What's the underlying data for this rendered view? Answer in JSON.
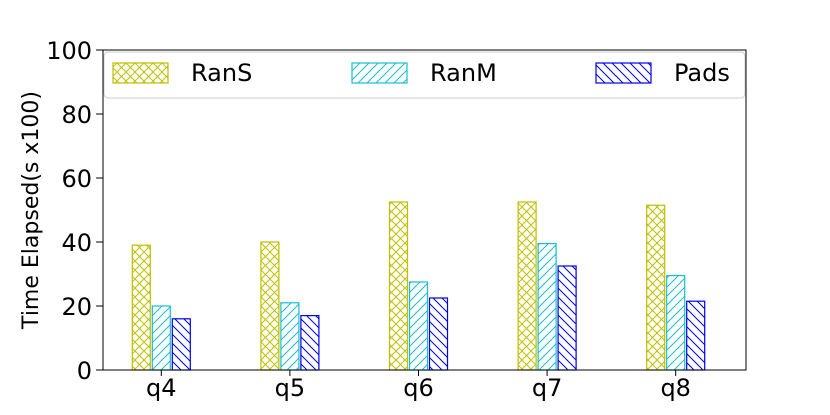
{
  "chart_data": {
    "type": "bar",
    "categories": [
      "q4",
      "q5",
      "q6",
      "q7",
      "q8"
    ],
    "series": [
      {
        "name": "RanS",
        "values": [
          39,
          40,
          52.5,
          52.5,
          51.5
        ],
        "color": "#bfbf00",
        "hatch": "crosshatch"
      },
      {
        "name": "RanM",
        "values": [
          20,
          21,
          27.5,
          39.5,
          29.5
        ],
        "color": "#17becf",
        "hatch": "forward-diagonal"
      },
      {
        "name": "Pads",
        "values": [
          16,
          17,
          22.5,
          32.5,
          21.5
        ],
        "color": "#0000ee",
        "hatch": "backward-diagonal"
      }
    ],
    "ylabel": "Time Elapsed(s x100)",
    "xlabel": "",
    "ylim": [
      0,
      100
    ],
    "yticks": [
      0,
      20,
      40,
      60,
      80,
      100
    ],
    "grid": false,
    "legend": "top, full width, 3 columns"
  }
}
